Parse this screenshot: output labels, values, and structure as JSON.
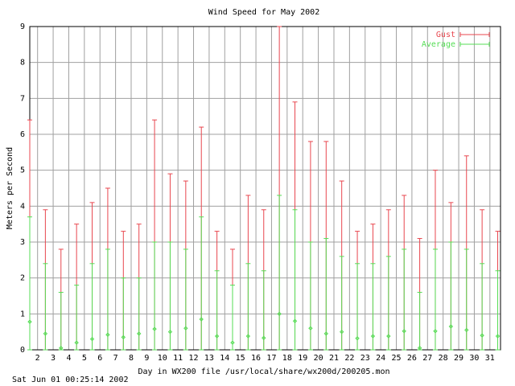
{
  "chart_data": {
    "type": "errorbar",
    "title": "Wind Speed for May 2002",
    "xlabel": "Day in WX200 file /usr/local/share/wx200d/200205.mon",
    "ylabel": "Meters per Second",
    "footer": "Sat Jun 01 00:25:14 2002",
    "x": [
      1.5,
      2.5,
      3.5,
      4.5,
      5.5,
      6.5,
      7.5,
      8.5,
      9.5,
      10.5,
      11.5,
      12.5,
      13.5,
      14.5,
      15.5,
      16.5,
      17.5,
      18.5,
      19.5,
      20.5,
      21.5,
      22.5,
      23.5,
      24.5,
      25.5,
      26.5,
      27.5,
      28.5,
      29.5,
      30.5,
      31.5
    ],
    "series": [
      {
        "name": "Gust",
        "color": "#e8474f",
        "values": [
          6.4,
          3.9,
          2.8,
          3.5,
          4.1,
          4.5,
          3.3,
          3.5,
          6.4,
          4.9,
          4.7,
          6.2,
          3.3,
          2.8,
          4.3,
          3.9,
          9.0,
          6.9,
          5.8,
          5.8,
          4.7,
          3.3,
          3.5,
          3.9,
          4.3,
          3.1,
          5.0,
          4.1,
          5.4,
          3.9,
          3.3
        ]
      },
      {
        "name": "Average",
        "color": "#55dd55",
        "values": [
          0.78,
          0.45,
          0.05,
          0.2,
          0.3,
          0.42,
          0.35,
          0.45,
          0.58,
          0.5,
          0.6,
          0.85,
          0.38,
          0.2,
          0.38,
          0.33,
          1.0,
          0.8,
          0.6,
          0.45,
          0.5,
          0.32,
          0.38,
          0.38,
          0.52,
          0.05,
          0.52,
          0.65,
          0.55,
          0.4,
          0.38
        ],
        "high": [
          3.7,
          2.4,
          1.6,
          1.8,
          2.4,
          2.8,
          2.0,
          2.0,
          3.0,
          3.0,
          2.8,
          3.7,
          2.2,
          1.8,
          2.4,
          2.2,
          4.3,
          3.9,
          3.0,
          3.1,
          2.6,
          2.4,
          2.4,
          2.6,
          2.8,
          1.6,
          2.8,
          3.0,
          2.8,
          2.4,
          2.2
        ]
      }
    ],
    "xlim": [
      1.5,
      31.68
    ],
    "xticks": [
      2,
      3,
      4,
      5,
      6,
      7,
      8,
      9,
      10,
      11,
      12,
      13,
      14,
      15,
      16,
      17,
      18,
      19,
      20,
      21,
      22,
      23,
      24,
      25,
      26,
      27,
      28,
      29,
      30,
      31
    ],
    "ylim": [
      0,
      9
    ],
    "yticks": [
      0,
      1,
      2,
      3,
      4,
      5,
      6,
      7,
      8,
      9
    ],
    "grid": true,
    "legend": "top-right"
  }
}
